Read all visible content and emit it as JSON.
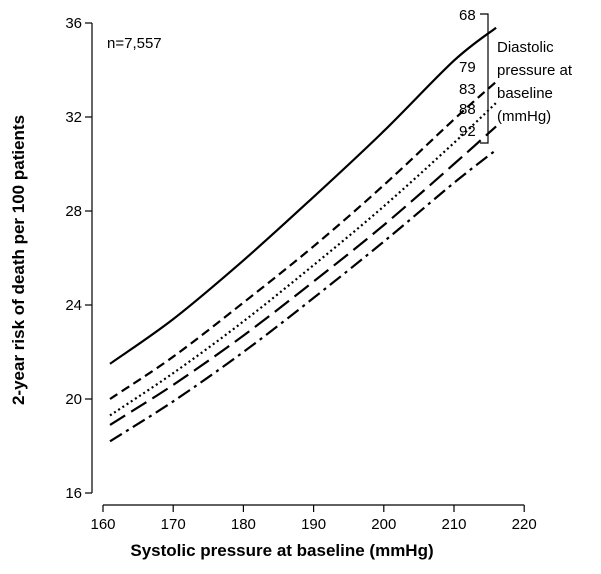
{
  "chart_data": {
    "type": "line",
    "title": "",
    "xlabel": "Systolic pressure at baseline (mmHg)",
    "ylabel": "2-year risk of death per 100 patients",
    "xlim": [
      160,
      220
    ],
    "ylim": [
      16,
      36
    ],
    "xticks": [
      160,
      170,
      180,
      190,
      200,
      210,
      220
    ],
    "yticks": [
      16,
      20,
      24,
      28,
      32,
      36
    ],
    "grid": false,
    "annotation": "n=7,557",
    "legend": {
      "title_lines": [
        "Diastolic",
        "pressure at",
        "baseline",
        "(mmHg)"
      ],
      "placement": "right"
    },
    "series": [
      {
        "name": "68",
        "style": "solid",
        "x": [
          161,
          170,
          180,
          190,
          200,
          210,
          216
        ],
        "y": [
          21.5,
          23.4,
          25.9,
          28.6,
          31.4,
          34.4,
          35.8
        ]
      },
      {
        "name": "79",
        "style": "dash",
        "x": [
          161,
          170,
          180,
          190,
          200,
          210,
          216
        ],
        "y": [
          20.0,
          21.8,
          24.1,
          26.5,
          29.1,
          31.9,
          33.5
        ]
      },
      {
        "name": "83",
        "style": "dot",
        "x": [
          161,
          170,
          180,
          190,
          200,
          210,
          216
        ],
        "y": [
          19.3,
          21.1,
          23.3,
          25.7,
          28.2,
          30.9,
          32.6
        ]
      },
      {
        "name": "88",
        "style": "longdash",
        "x": [
          161,
          170,
          180,
          190,
          200,
          210,
          216
        ],
        "y": [
          18.9,
          20.6,
          22.7,
          25.0,
          27.4,
          30.0,
          31.6
        ]
      },
      {
        "name": "92",
        "style": "dashdot",
        "x": [
          161,
          170,
          180,
          190,
          200,
          210,
          216
        ],
        "y": [
          18.2,
          19.9,
          22.0,
          24.3,
          26.7,
          29.2,
          30.6
        ]
      }
    ]
  }
}
